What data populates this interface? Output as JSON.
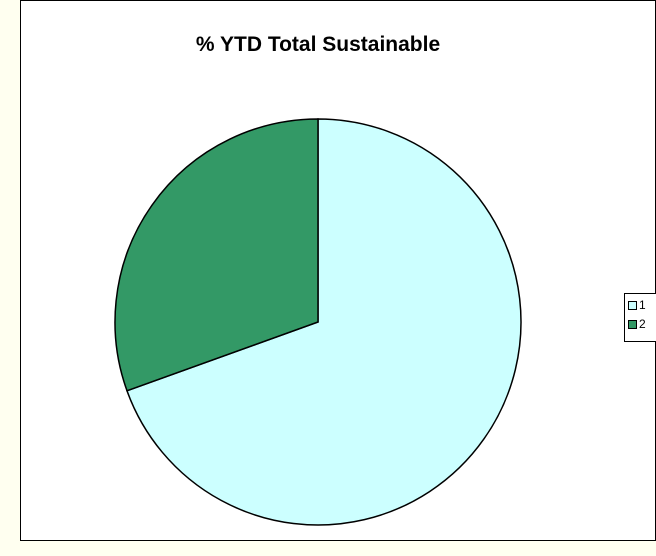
{
  "chart_data": {
    "type": "pie",
    "title": "% YTD Total Sustainable",
    "categories": [
      "1",
      "2"
    ],
    "values": [
      69.5,
      30.5
    ],
    "colors": [
      "#ccffff",
      "#339966"
    ],
    "start_angle_deg": 0,
    "direction": "clockwise",
    "legend_position": "right"
  }
}
